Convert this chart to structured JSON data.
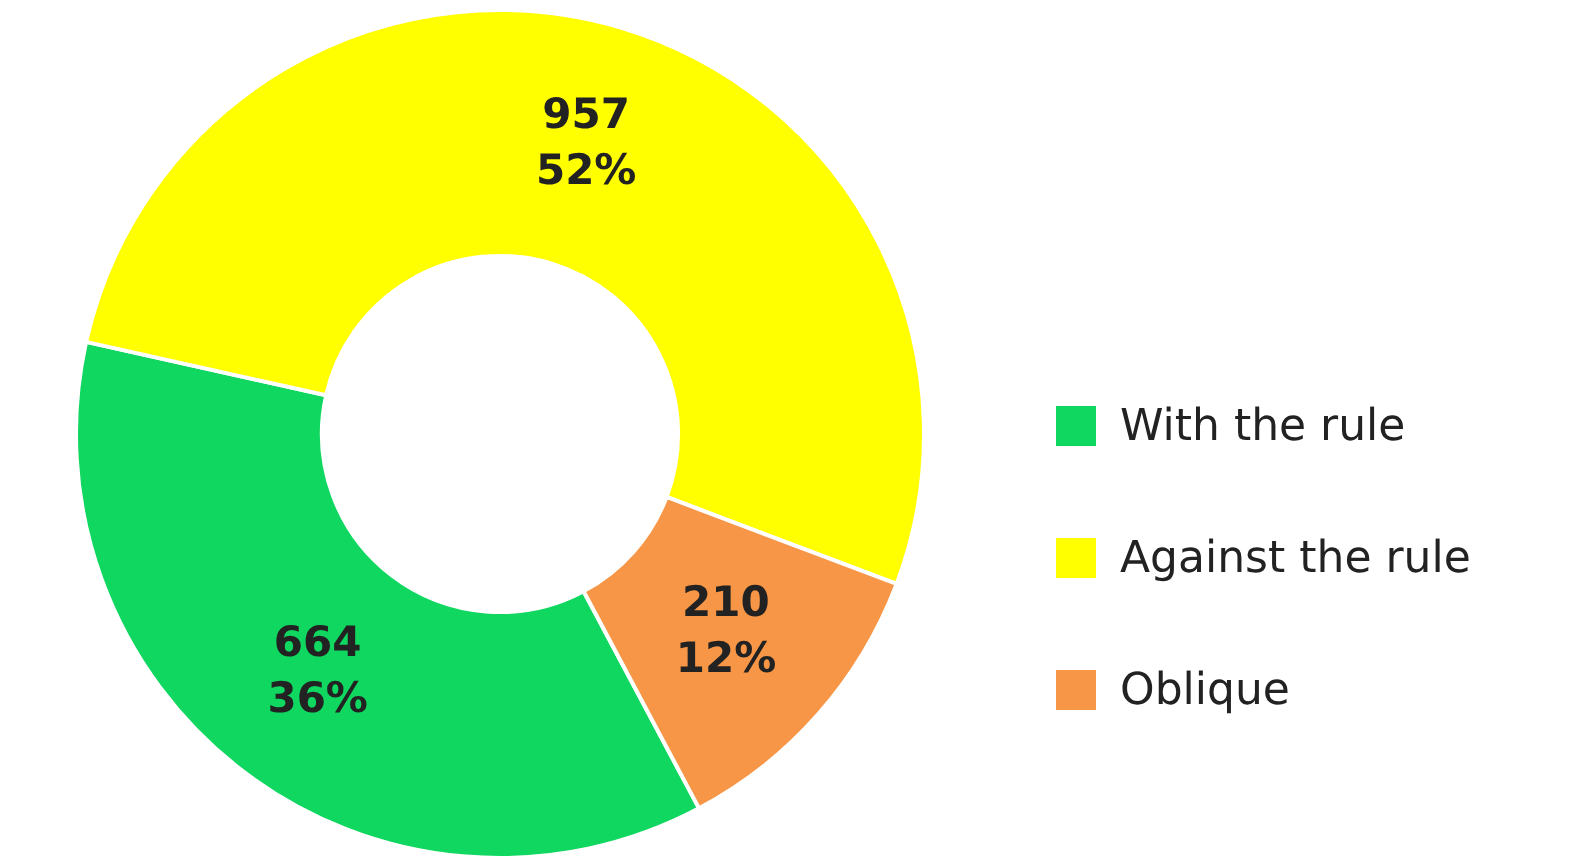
{
  "chart_data": {
    "type": "donut",
    "categories": [
      "With the rule",
      "Against the rule",
      "Oblique"
    ],
    "values": [
      664,
      957,
      210
    ],
    "colors": [
      "#0fd760",
      "#ffff00",
      "#f79646"
    ],
    "value_labels": [
      "664\n36%",
      "957\n52%",
      "210\n12%"
    ],
    "legend": "right"
  }
}
